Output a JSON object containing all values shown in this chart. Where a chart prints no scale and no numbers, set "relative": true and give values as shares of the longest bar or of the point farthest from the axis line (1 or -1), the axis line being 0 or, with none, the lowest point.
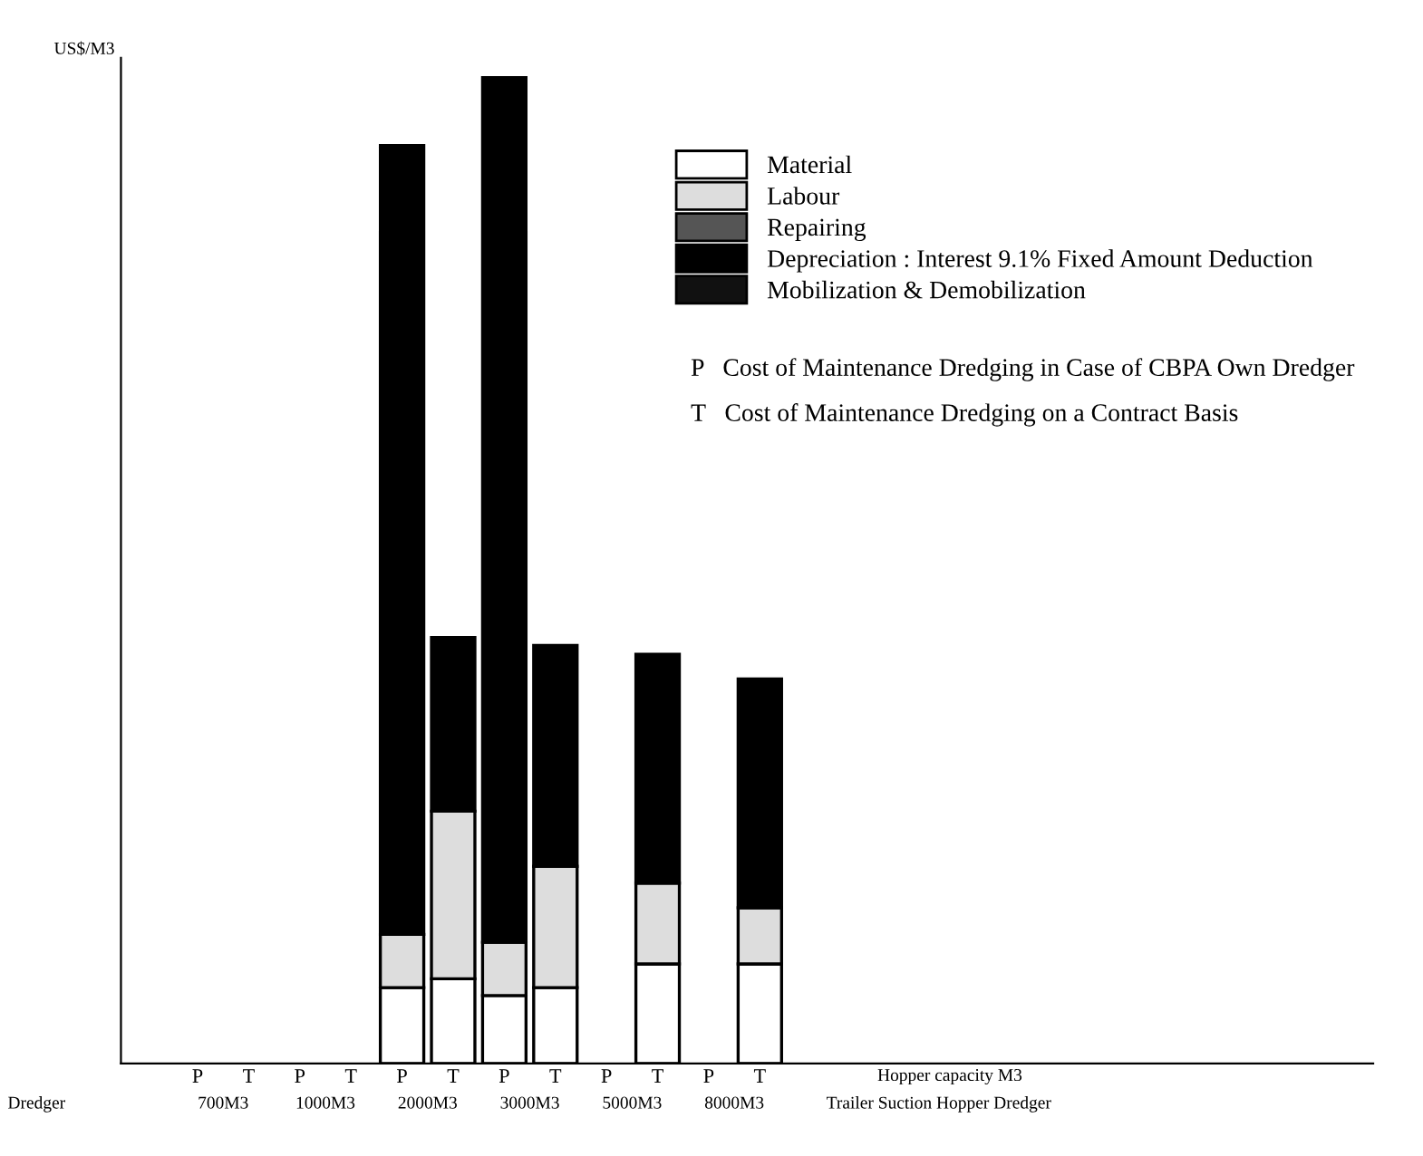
{
  "chart_data": {
    "type": "bar",
    "stacked": true,
    "relative": true,
    "ylabel": "US$/M3",
    "categories": [
      "P",
      "T",
      "P",
      "T",
      "P",
      "T",
      "P",
      "T",
      "P",
      "T",
      "P",
      "T"
    ],
    "series": [
      {
        "name": "Material",
        "color": "#ffffff",
        "values": [
          null,
          null,
          null,
          null,
          0.077,
          0.086,
          0.069,
          0.077,
          null,
          0.101,
          null,
          0.101
        ]
      },
      {
        "name": "Labour",
        "color": "#dddddd",
        "values": [
          null,
          null,
          null,
          null,
          0.054,
          0.17,
          0.054,
          0.123,
          null,
          0.082,
          null,
          0.057
        ]
      },
      {
        "name": "Repairing",
        "color": "#555555",
        "values": [
          null,
          null,
          null,
          null,
          null,
          null,
          null,
          null,
          null,
          null,
          null,
          null
        ]
      },
      {
        "name": "Depreciation : Interest 9.1% Fixed Amount Deduction",
        "color": "#000000",
        "values": [
          null,
          null,
          null,
          null,
          0.8,
          0.176,
          0.877,
          0.224,
          null,
          0.232,
          null,
          0.232
        ]
      },
      {
        "name": "Mobilization & Demobilization",
        "color": "#111111",
        "values": [
          null,
          null,
          null,
          null,
          null,
          null,
          null,
          null,
          null,
          null,
          null,
          null
        ]
      }
    ],
    "annotations": [
      "700M3",
      "1000M3",
      "2000M3",
      "3000M3",
      "5000M3",
      "8000M3",
      "Dredger",
      "Hopper capacity M3",
      "Trailer Suction Hopper Dredger",
      "P   Cost of Maintenance Dredging in Case of CBPA Own Dredger",
      "T   Cost of Maintenance Dredging on a Contract Basis"
    ],
    "legend": "top right",
    "grid": false
  }
}
